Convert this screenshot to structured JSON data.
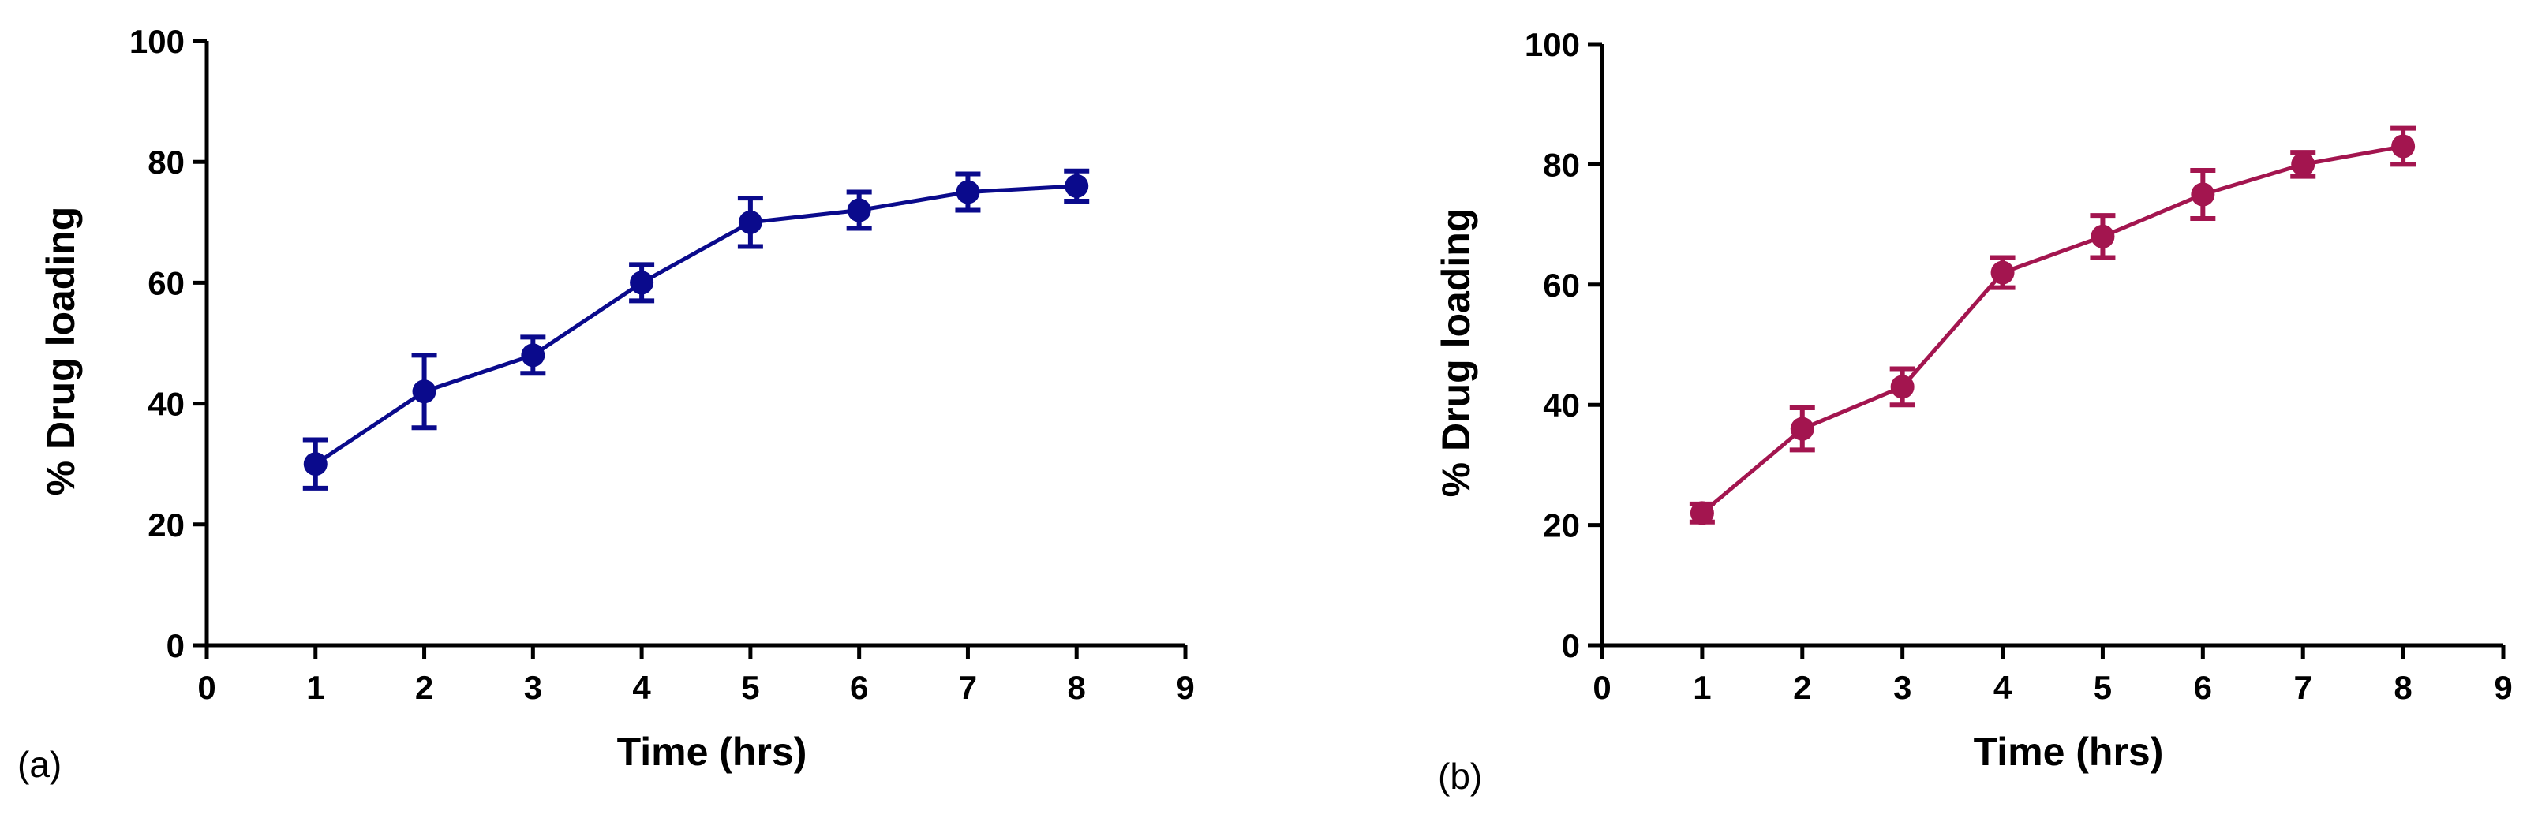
{
  "chart_data": [
    {
      "type": "line",
      "panel_label": "(a)",
      "xlabel": "Time (hrs)",
      "ylabel": "% Drug loading",
      "xlim": [
        0,
        9
      ],
      "ylim": [
        0,
        100
      ],
      "x_ticks": [
        0,
        1,
        2,
        3,
        4,
        5,
        6,
        7,
        8,
        9
      ],
      "y_ticks": [
        0,
        20,
        40,
        60,
        80,
        100
      ],
      "color": "#0a0a8c",
      "grid": false,
      "series": [
        {
          "x": [
            1,
            2,
            3,
            4,
            5,
            6,
            7,
            8
          ],
          "y": [
            30,
            42,
            48,
            60,
            70,
            72,
            75,
            76
          ],
          "error": [
            4,
            6,
            3,
            3,
            4,
            3,
            3,
            2.5
          ]
        }
      ]
    },
    {
      "type": "line",
      "panel_label": "(b)",
      "xlabel": "Time (hrs)",
      "ylabel": "% Drug loading",
      "xlim": [
        0,
        9
      ],
      "ylim": [
        0,
        100
      ],
      "x_ticks": [
        0,
        1,
        2,
        3,
        4,
        5,
        6,
        7,
        8,
        9
      ],
      "y_ticks": [
        0,
        20,
        40,
        60,
        80,
        100
      ],
      "color": "#a3154f",
      "grid": false,
      "series": [
        {
          "x": [
            1,
            2,
            3,
            4,
            5,
            6,
            7,
            8
          ],
          "y": [
            22,
            36,
            43,
            62,
            68,
            75,
            80,
            83
          ],
          "error": [
            1.5,
            3.5,
            3,
            2.5,
            3.5,
            4,
            2,
            3
          ]
        }
      ]
    }
  ]
}
